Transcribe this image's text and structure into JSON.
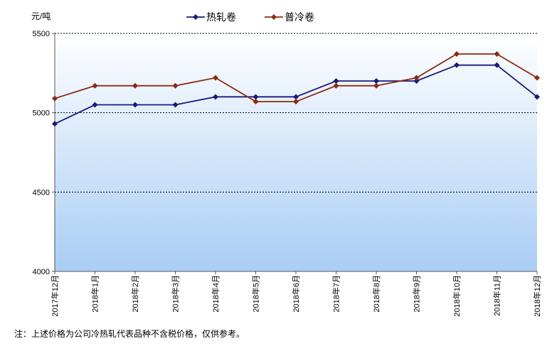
{
  "chart_data": {
    "type": "line",
    "ylabel": "元/吨",
    "ylim": [
      4000,
      5500
    ],
    "yticks": [
      4000,
      4500,
      5000,
      5500
    ],
    "categories": [
      "2017年12月",
      "2018年1月",
      "2018年2月",
      "2018年3月",
      "2018年4月",
      "2018年5月",
      "2018年6月",
      "2018年7月",
      "2018年8月",
      "2018年9月",
      "2018年10月",
      "2018年11月",
      "2018年12月"
    ],
    "series": [
      {
        "name": "热轧卷",
        "color": "#1a1a7a",
        "values": [
          4930,
          5050,
          5050,
          5050,
          5100,
          5100,
          5100,
          5200,
          5200,
          5200,
          5300,
          5300,
          5100
        ]
      },
      {
        "name": "普冷卷",
        "color": "#8b2a14",
        "values": [
          5090,
          5170,
          5170,
          5170,
          5220,
          5070,
          5070,
          5170,
          5170,
          5220,
          5370,
          5370,
          5220
        ]
      }
    ],
    "grid": "horizontal dashed",
    "legend": "top-center",
    "background": "light-blue gradient"
  },
  "note": "注：上述价格为公司冷热轧代表品种不含税价格，仅供参考。"
}
